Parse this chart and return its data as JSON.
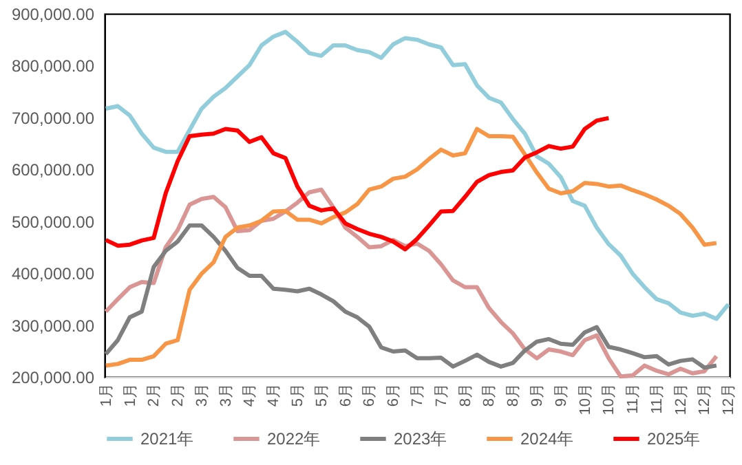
{
  "chart_data": {
    "type": "line",
    "categories": [
      "1月",
      null,
      "1月",
      null,
      "2月",
      null,
      "2月",
      null,
      "3月",
      null,
      "3月",
      null,
      "4月",
      null,
      "4月",
      null,
      "5月",
      null,
      "5月",
      null,
      "6月",
      null,
      "6月",
      null,
      "6月",
      null,
      "7月",
      null,
      "7月",
      null,
      "8月",
      null,
      "8月",
      null,
      "8月",
      null,
      "9月",
      null,
      "9月",
      null,
      "10月",
      null,
      "10月",
      null,
      "11月",
      null,
      "11月",
      null,
      "12月",
      null,
      "12月",
      null,
      "12月"
    ],
    "series": [
      {
        "name": "2021年",
        "color": "#92cddc",
        "values": [
          717000,
          722000,
          704000,
          669000,
          642000,
          634000,
          634000,
          676000,
          717000,
          740000,
          757000,
          779000,
          801000,
          839000,
          856000,
          865000,
          846000,
          824000,
          819000,
          839000,
          839000,
          830000,
          826000,
          815000,
          841000,
          853000,
          850000,
          841000,
          835000,
          801000,
          803000,
          762000,
          738000,
          729000,
          697000,
          669000,
          625000,
          611000,
          585000,
          539000,
          530000,
          488000,
          456000,
          434000,
          399000,
          373000,
          350000,
          342000,
          324000,
          318000,
          322000,
          312000,
          340000
        ]
      },
      {
        "name": "2022年",
        "color": "#da9694",
        "values": [
          326000,
          350000,
          373000,
          383000,
          381000,
          450000,
          483000,
          532000,
          543000,
          547000,
          527000,
          481000,
          483000,
          501000,
          505000,
          519000,
          536000,
          556000,
          561000,
          527000,
          488000,
          470000,
          450000,
          452000,
          464000,
          452000,
          457000,
          443000,
          417000,
          386000,
          373000,
          373000,
          333000,
          306000,
          284000,
          253000,
          236000,
          253000,
          249000,
          242000,
          271000,
          280000,
          236000,
          201000,
          203000,
          222000,
          212000,
          205000,
          216000,
          207000,
          211000,
          240000,
          null
        ]
      },
      {
        "name": "2023年",
        "color": "#7f7f7f",
        "values": [
          244000,
          271000,
          315000,
          326000,
          412000,
          443000,
          461000,
          492000,
          492000,
          470000,
          443000,
          410000,
          395000,
          395000,
          370000,
          368000,
          365000,
          370000,
          359000,
          346000,
          326000,
          315000,
          297000,
          257000,
          249000,
          251000,
          236000,
          236000,
          237000,
          220000,
          231000,
          243000,
          229000,
          220000,
          227000,
          251000,
          268000,
          273000,
          264000,
          262000,
          286000,
          296000,
          258000,
          253000,
          246000,
          238000,
          240000,
          224000,
          231000,
          234000,
          218000,
          222000,
          null
        ]
      },
      {
        "name": "2024年",
        "color": "#f79646",
        "values": [
          222000,
          225000,
          233000,
          233000,
          240000,
          264000,
          271000,
          368000,
          399000,
          421000,
          470000,
          488000,
          492000,
          501000,
          519000,
          520000,
          503000,
          503000,
          496000,
          508000,
          517000,
          533000,
          561000,
          567000,
          582000,
          586000,
          600000,
          620000,
          638000,
          627000,
          631000,
          678000,
          664000,
          664000,
          663000,
          629000,
          594000,
          563000,
          554000,
          558000,
          574000,
          572000,
          567000,
          569000,
          560000,
          552000,
          542000,
          530000,
          514000,
          488000,
          455000,
          458000,
          null
        ]
      },
      {
        "name": "2025年",
        "color": "#ff0000",
        "values": [
          464000,
          453000,
          455000,
          463000,
          468000,
          554000,
          616000,
          664000,
          667000,
          669000,
          678000,
          675000,
          653000,
          662000,
          631000,
          622000,
          567000,
          530000,
          521000,
          525000,
          496000,
          485000,
          476000,
          470000,
          461000,
          446000,
          466000,
          492000,
          519000,
          520000,
          547000,
          576000,
          589000,
          595000,
          598000,
          623000,
          633000,
          645000,
          640000,
          644000,
          678000,
          694000,
          699000,
          null,
          null,
          null,
          null,
          null,
          null,
          null,
          null,
          null,
          null
        ]
      }
    ],
    "ylim": [
      200000,
      900000
    ],
    "yticks": [
      {
        "value": 200000,
        "label": "200,000.00"
      },
      {
        "value": 300000,
        "label": "300,000.00"
      },
      {
        "value": 400000,
        "label": "400,000.00"
      },
      {
        "value": 500000,
        "label": "500,000.00"
      },
      {
        "value": 600000,
        "label": "600,000.00"
      },
      {
        "value": 700000,
        "label": "700,000.00"
      },
      {
        "value": 800000,
        "label": "800,000.00"
      },
      {
        "value": 900000,
        "label": "900,000.00"
      }
    ],
    "grid": false,
    "legend": "bottom",
    "marker": "none"
  }
}
